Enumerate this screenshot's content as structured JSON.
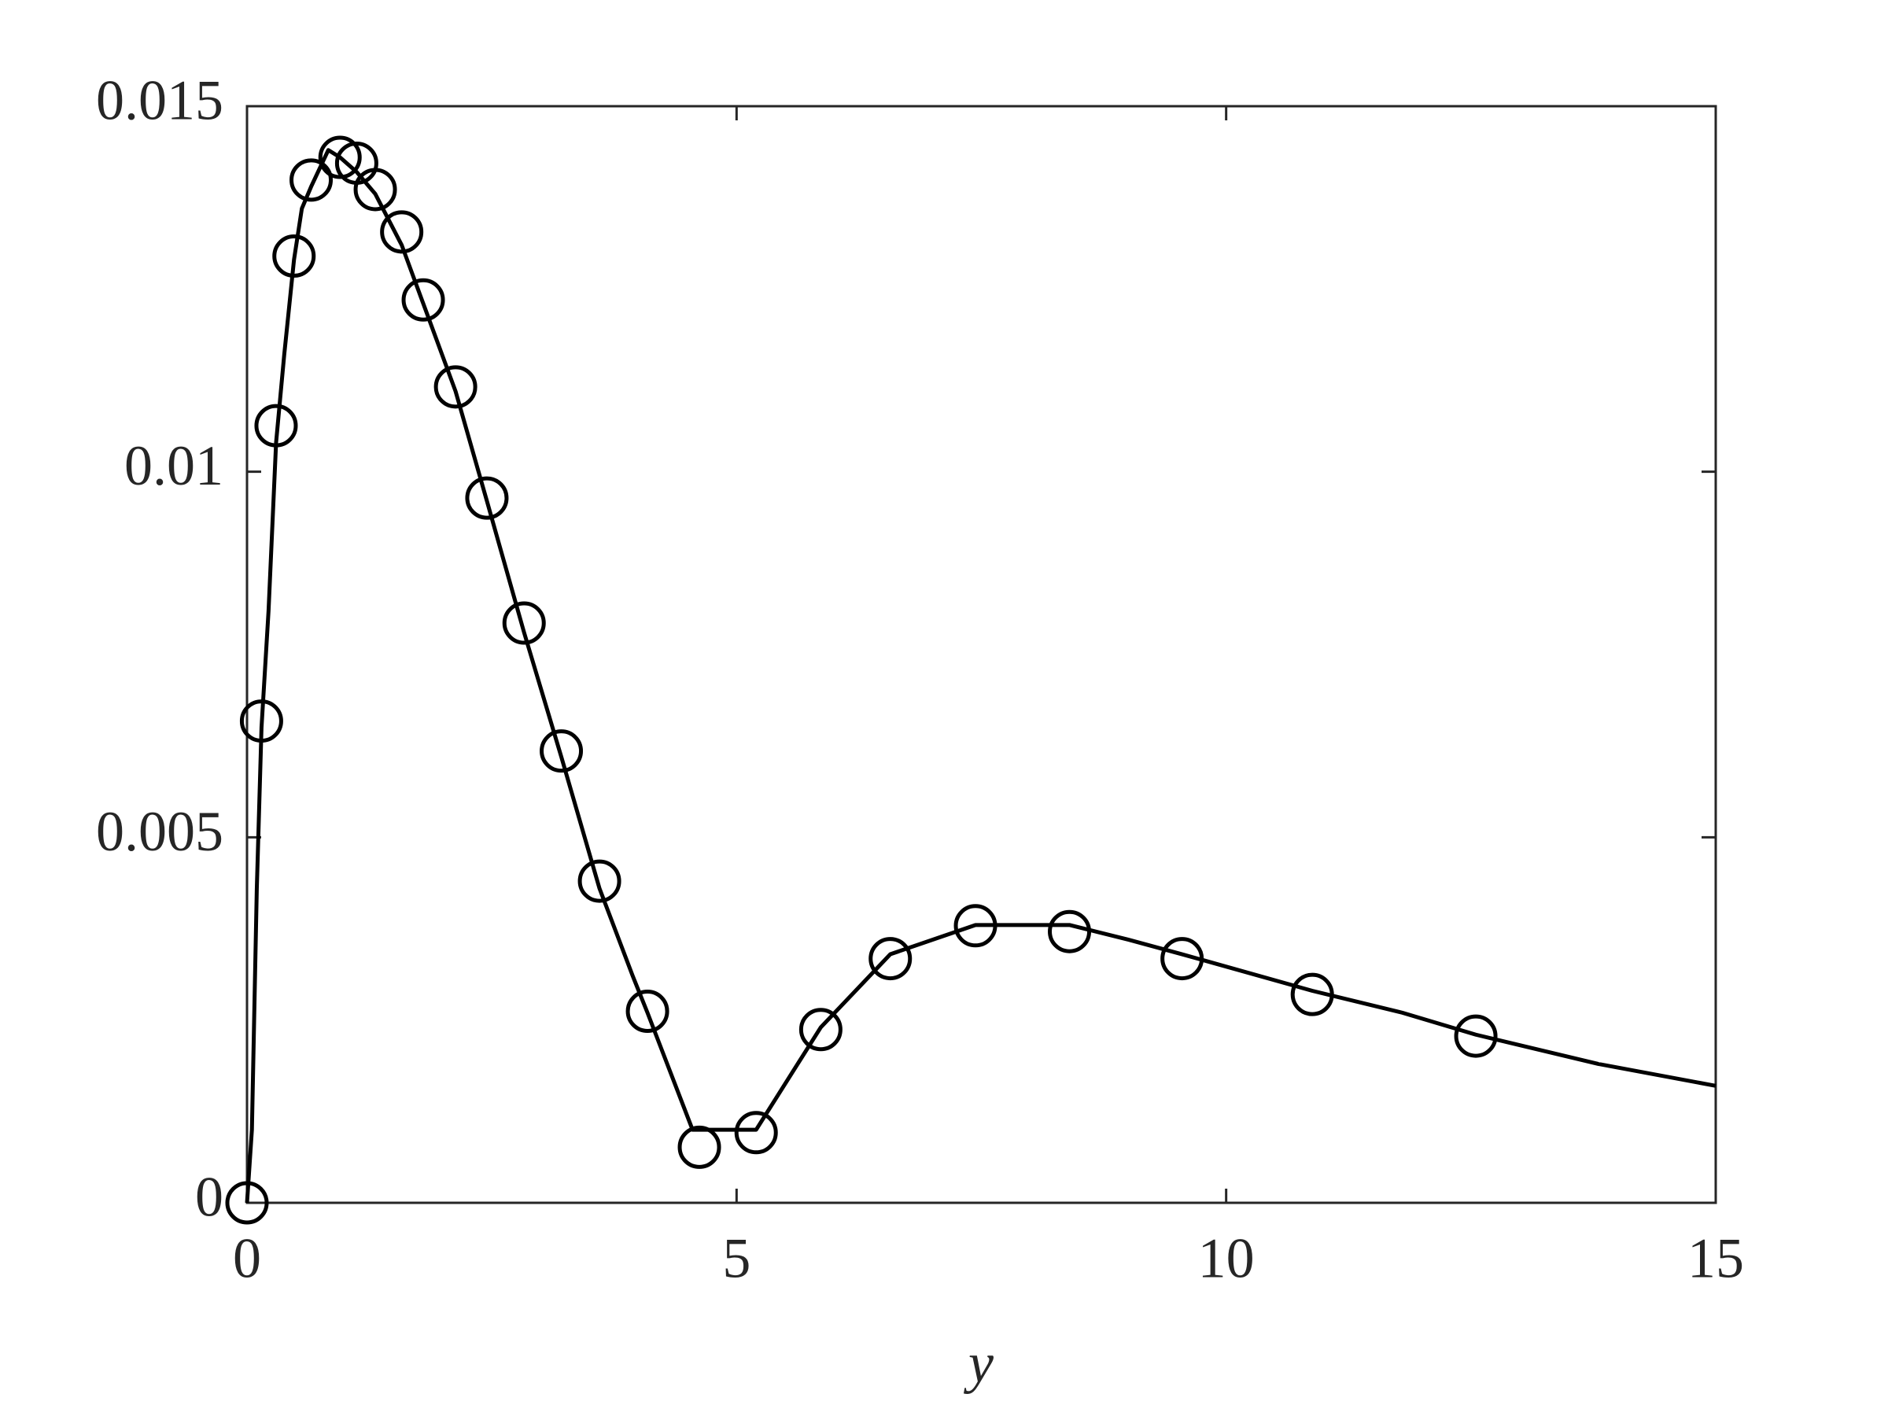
{
  "chart_data": {
    "type": "line",
    "xlabel": "y",
    "xlim": [
      0,
      15
    ],
    "xticks": [
      0,
      5,
      10,
      15
    ],
    "ylim": [
      0,
      0.015
    ],
    "yticks": [
      0,
      0.005,
      0.01,
      0.015
    ],
    "box": true,
    "grid": false,
    "series": [
      {
        "color": "#000000",
        "line": true,
        "marker": "none",
        "x": [
          0,
          0.05,
          0.1,
          0.148,
          0.22,
          0.297,
          0.38,
          0.48,
          0.56,
          0.655,
          0.83,
          0.95,
          1.12,
          1.31,
          1.58,
          1.8,
          2.13,
          2.45,
          2.83,
          3.21,
          3.6,
          3.94,
          4.09,
          4.55,
          5.2,
          5.86,
          6.57,
          7.44,
          8.4,
          9.0,
          9.55,
          10.88,
          11.8,
          12.55,
          13.8,
          15
        ],
        "values": [
          0,
          0.001,
          0.0043,
          0.0065,
          0.0081,
          0.0104,
          0.0116,
          0.0129,
          0.0136,
          0.0139,
          0.0144,
          0.0143,
          0.0141,
          0.0138,
          0.0131,
          0.0123,
          0.0111,
          0.0096,
          0.0078,
          0.0061,
          0.0043,
          0.0031,
          0.0026,
          0.001,
          0.001,
          0.0024,
          0.0034,
          0.0038,
          0.0038,
          0.0036,
          0.0034,
          0.0029,
          0.0026,
          0.0023,
          0.0019,
          0.0016
        ]
      },
      {
        "color": "#000000",
        "line": false,
        "marker": "circle",
        "x": [
          0,
          0.148,
          0.297,
          0.48,
          0.655,
          0.95,
          1.12,
          1.31,
          1.58,
          1.8,
          2.13,
          2.45,
          2.83,
          3.21,
          3.6,
          4.09,
          4.62,
          5.2,
          5.86,
          6.57,
          7.44,
          8.4,
          9.55,
          10.88,
          12.55
        ],
        "values": [
          0,
          0.00659,
          0.01063,
          0.01295,
          0.01399,
          0.0143,
          0.01422,
          0.01386,
          0.01328,
          0.01235,
          0.01116,
          0.00964,
          0.00793,
          0.00618,
          0.0044,
          0.00262,
          0.00076,
          0.00096,
          0.00237,
          0.00334,
          0.00379,
          0.00371,
          0.00334,
          0.00285,
          0.00228
        ]
      }
    ]
  }
}
